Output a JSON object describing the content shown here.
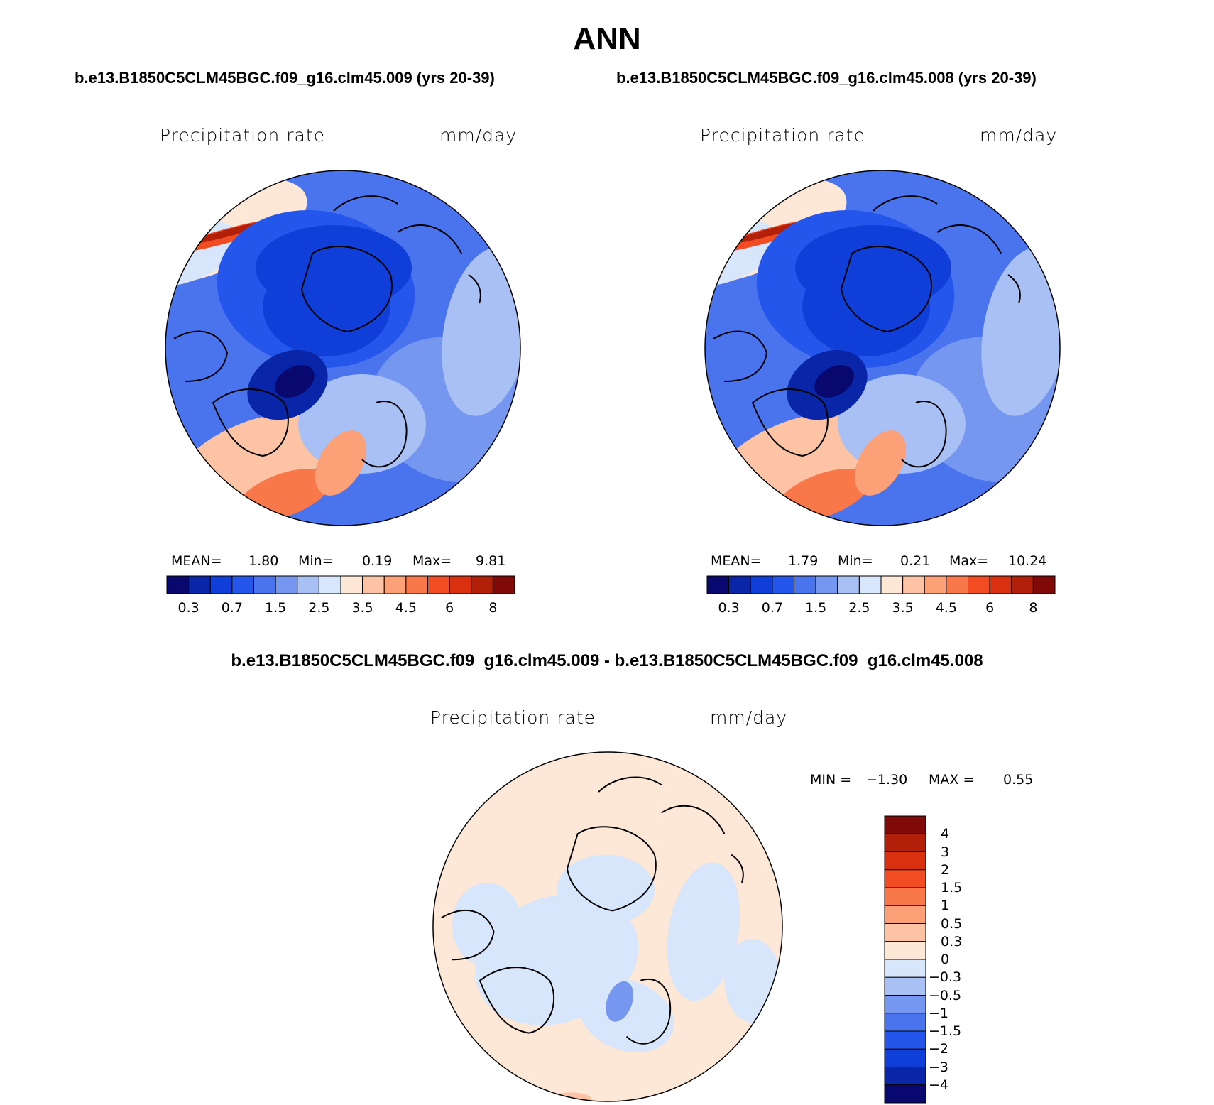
{
  "title": "ANN",
  "case_titles": [
    "b.e13.B1850C5CLM45BGC.f09_g16.clm45.009 (yrs 20-39)",
    "b.e13.B1850C5CLM45BGC.f09_g16.clm45.008 (yrs 20-39)"
  ],
  "diff_title": "b.e13.B1850C5CLM45BGC.f09_g16.clm45.009 - b.e13.B1850C5CLM45BGC.f09_g16.clm45.008",
  "panels": [
    {
      "variable": "Precipitation rate",
      "units": "mm/day",
      "mean_label": "MEAN=",
      "mean": "1.80",
      "min_label": "Min=",
      "min": "0.19",
      "max_label": "Max=",
      "max": "9.81"
    },
    {
      "variable": "Precipitation rate",
      "units": "mm/day",
      "mean_label": "MEAN=",
      "mean": "1.79",
      "min_label": "Min=",
      "min": "0.21",
      "max_label": "Max=",
      "max": "10.24"
    },
    {
      "variable": "Precipitation rate",
      "units": "mm/day",
      "min_label": "MIN =",
      "min": "−1.30",
      "max_label": "MAX =",
      "max": "0.55"
    }
  ],
  "colorbar_abs": {
    "ticks": [
      "0.3",
      "0.7",
      "1.5",
      "2.5",
      "3.5",
      "4.5",
      "6",
      "8"
    ],
    "levels": [
      0.2,
      0.3,
      0.5,
      0.7,
      1,
      1.5,
      2,
      2.5,
      3,
      3.5,
      4,
      4.5,
      5,
      6,
      7,
      8
    ],
    "colors": [
      "#08086e",
      "#0a26a8",
      "#0f3fd8",
      "#2456ec",
      "#4a74ee",
      "#7597f0",
      "#a8c0f4",
      "#d7e6fa",
      "#fde7d6",
      "#fcc4a4",
      "#fba077",
      "#f9784a",
      "#f24d22",
      "#d9300f",
      "#b3200a",
      "#7f0a07"
    ]
  },
  "colorbar_diff": {
    "ticks": [
      "4",
      "3",
      "2",
      "1.5",
      "1",
      "0.5",
      "0.3",
      "0",
      "−0.3",
      "−0.5",
      "−1",
      "−1.5",
      "−2",
      "−3",
      "−4"
    ],
    "colors": [
      "#7f0a07",
      "#b3200a",
      "#d9300f",
      "#f24d22",
      "#f9784a",
      "#fba077",
      "#fcc4a4",
      "#fde7d6",
      "#d7e6fa",
      "#a8c0f4",
      "#7597f0",
      "#4a74ee",
      "#2456ec",
      "#0f3fd8",
      "#0a26a8",
      "#08086e"
    ]
  },
  "chart_data": [
    {
      "type": "heatmap",
      "projection": "north-polar-stereographic",
      "title": "b.e13.B1850C5CLM45BGC.f09_g16.clm45.009 (yrs 20-39)",
      "variable": "Precipitation rate",
      "units": "mm/day",
      "mean": 1.8,
      "min": 0.19,
      "max": 9.81,
      "color_levels": [
        0.2,
        0.3,
        0.5,
        0.7,
        1,
        1.5,
        2,
        2.5,
        3,
        3.5,
        4,
        4.5,
        5,
        6,
        7,
        8
      ]
    },
    {
      "type": "heatmap",
      "projection": "north-polar-stereographic",
      "title": "b.e13.B1850C5CLM45BGC.f09_g16.clm45.008 (yrs 20-39)",
      "variable": "Precipitation rate",
      "units": "mm/day",
      "mean": 1.79,
      "min": 0.21,
      "max": 10.24,
      "color_levels": [
        0.2,
        0.3,
        0.5,
        0.7,
        1,
        1.5,
        2,
        2.5,
        3,
        3.5,
        4,
        4.5,
        5,
        6,
        7,
        8
      ]
    },
    {
      "type": "heatmap",
      "projection": "north-polar-stereographic",
      "title": "b.e13.B1850C5CLM45BGC.f09_g16.clm45.009 - b.e13.B1850C5CLM45BGC.f09_g16.clm45.008",
      "variable": "Precipitation rate",
      "units": "mm/day",
      "min": -1.3,
      "max": 0.55,
      "color_levels": [
        -4,
        -3,
        -2,
        -1.5,
        -1,
        -0.5,
        -0.3,
        0,
        0.3,
        0.5,
        1,
        1.5,
        2,
        3,
        4
      ]
    }
  ]
}
